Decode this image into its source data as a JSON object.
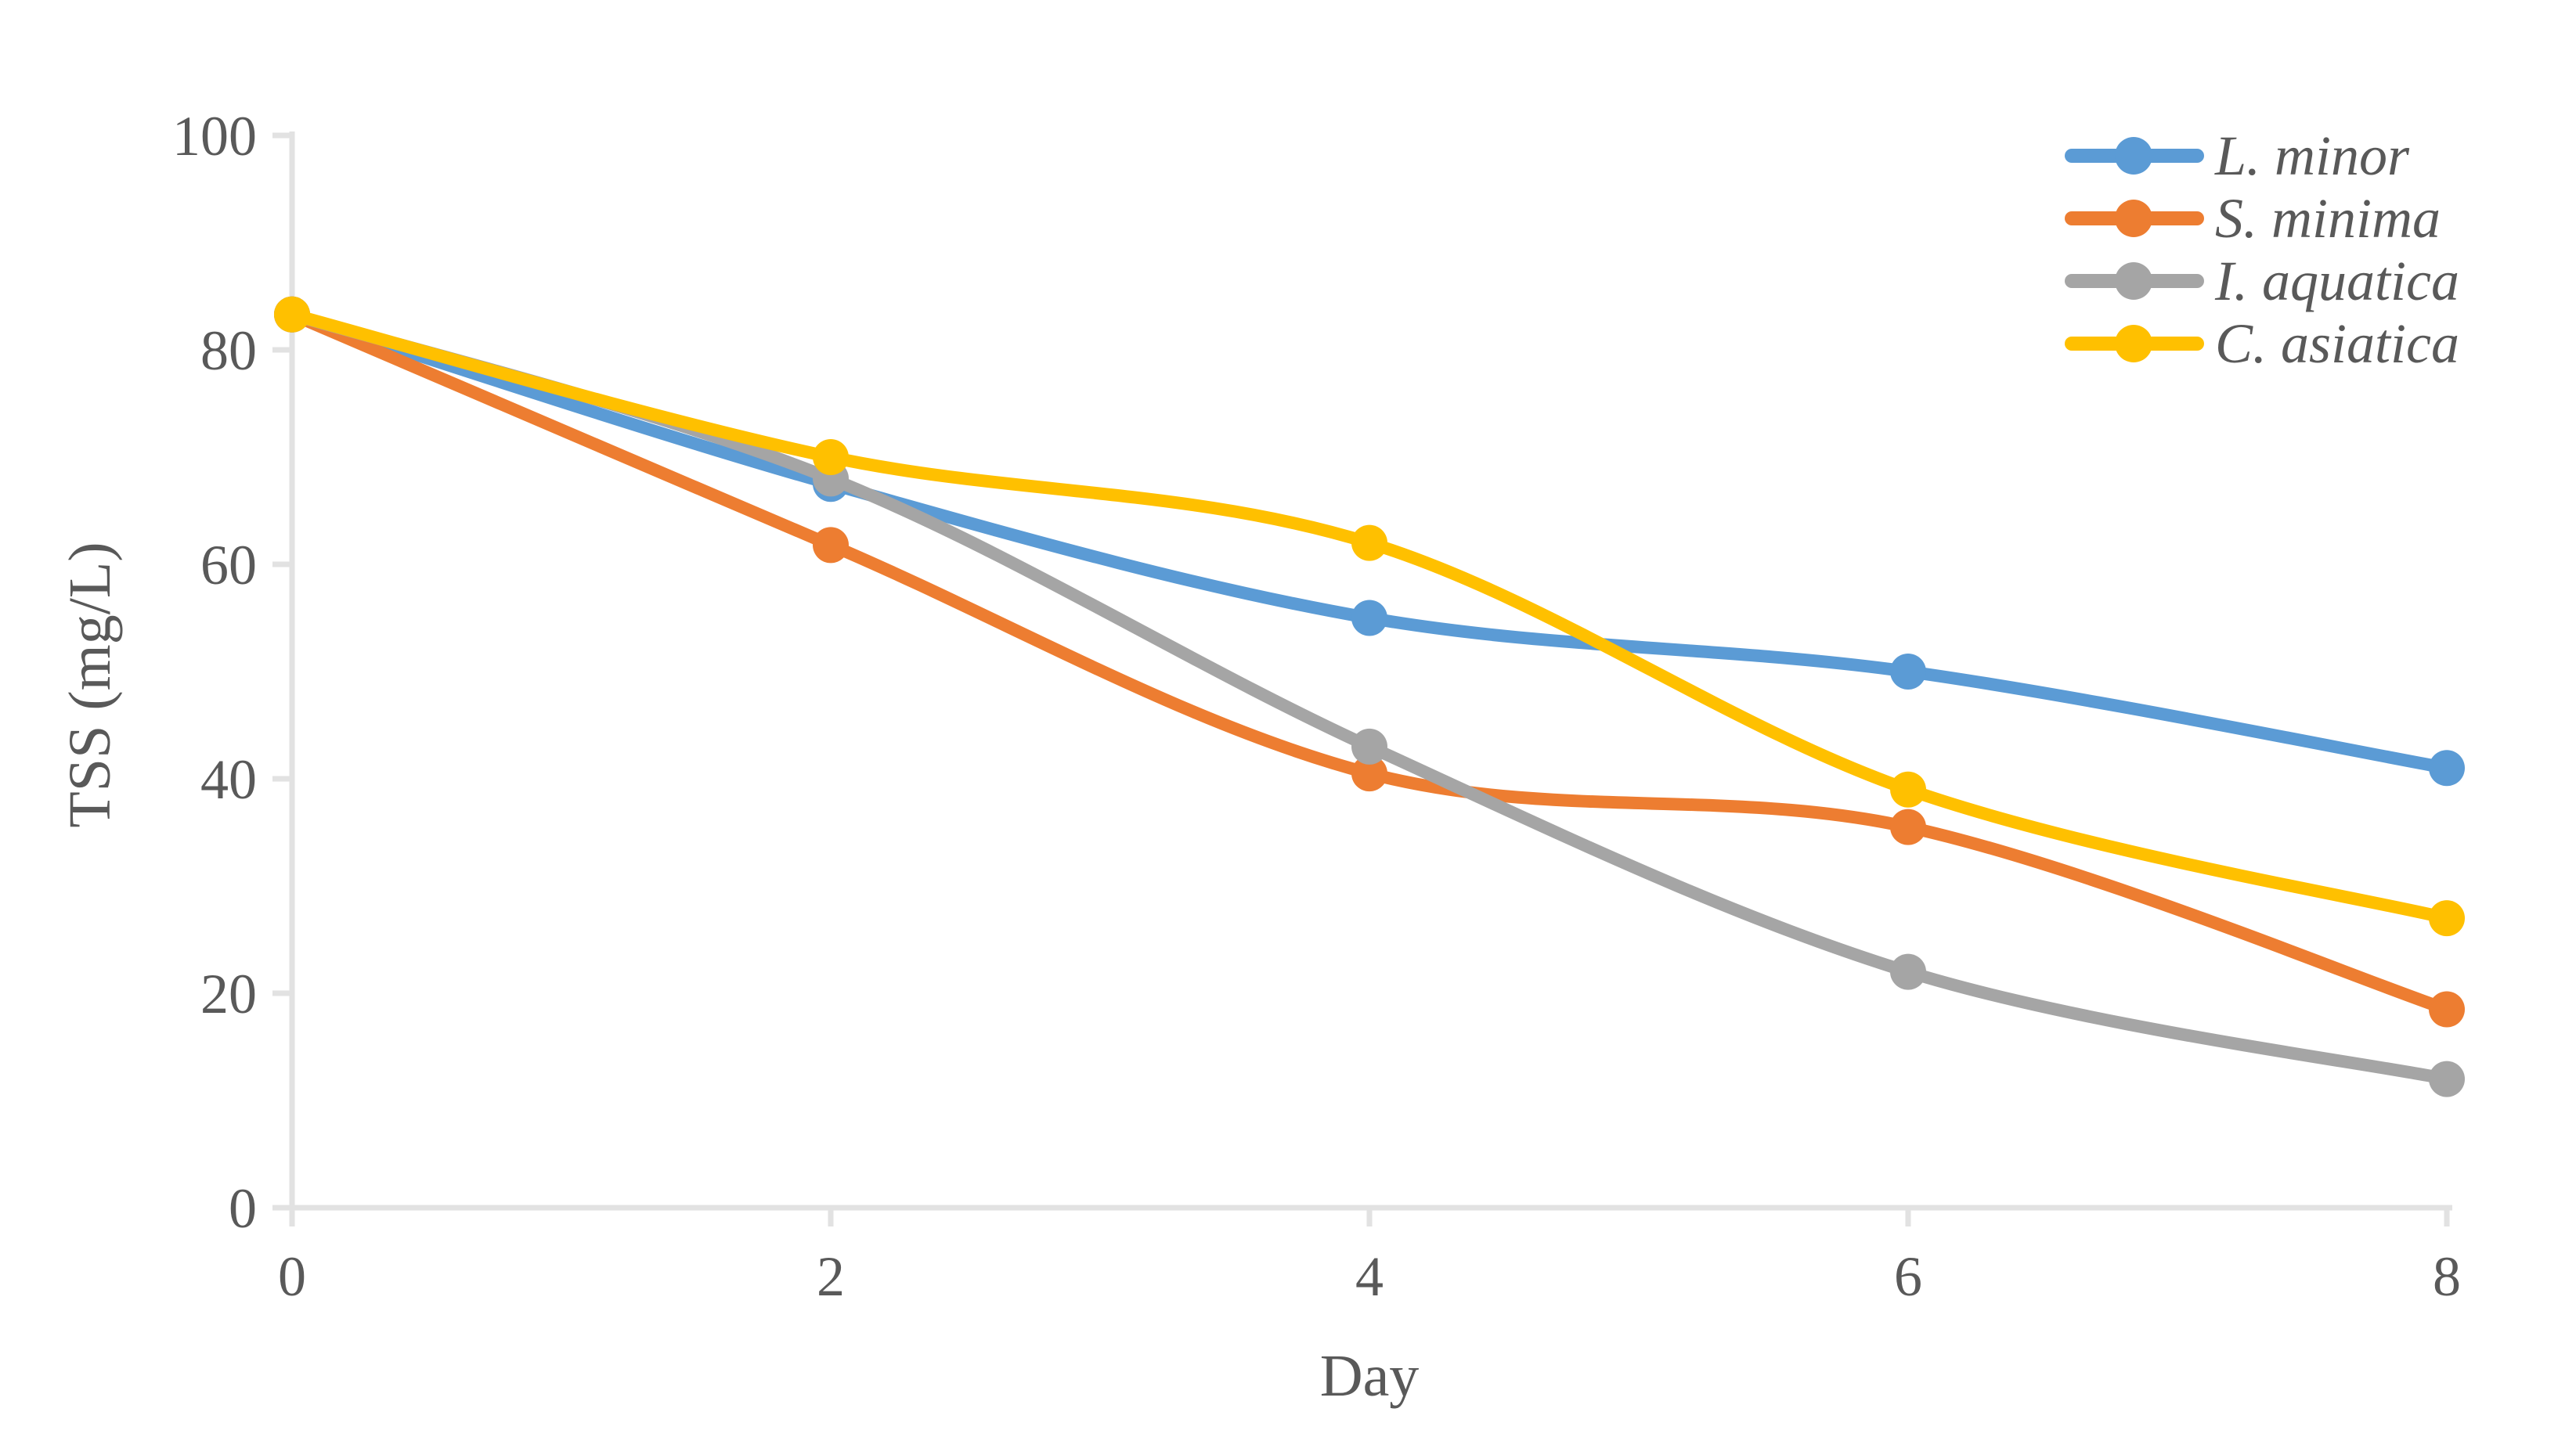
{
  "chart_data": {
    "type": "line",
    "title": "",
    "xlabel": "Day",
    "ylabel": "TSS (mg/L)",
    "x": [
      0,
      2,
      4,
      6,
      8
    ],
    "xtick_labels": [
      "0",
      "2",
      "4",
      "6",
      "8"
    ],
    "yticks": [
      0,
      20,
      40,
      60,
      80,
      100
    ],
    "ytick_labels": [
      "0",
      "20",
      "40",
      "60",
      "80",
      "100"
    ],
    "ylim": [
      0,
      100
    ],
    "xlim": [
      0,
      8
    ],
    "grid": false,
    "smoothed": true,
    "legend_position": "top-right",
    "series": [
      {
        "name": "L. minor",
        "color": "#5B9BD5",
        "values": [
          83.3,
          67.5,
          55.0,
          50.0,
          41.0
        ]
      },
      {
        "name": "S. minima",
        "color": "#ED7D31",
        "values": [
          83.3,
          61.8,
          40.5,
          35.5,
          18.5
        ]
      },
      {
        "name": "I. aquatica",
        "color": "#A5A5A5",
        "values": [
          83.3,
          68.0,
          43.0,
          22.0,
          12.0
        ]
      },
      {
        "name": "C. asiatica",
        "color": "#FFC000",
        "values": [
          83.3,
          70.0,
          62.0,
          39.0,
          27.0
        ]
      }
    ]
  },
  "styles": {
    "text_color": "#595959",
    "axis_line_color": "#E2E2E2",
    "background": "#FFFFFF",
    "tick_font_size": 72,
    "line_width": 16,
    "marker_radius": 23
  }
}
